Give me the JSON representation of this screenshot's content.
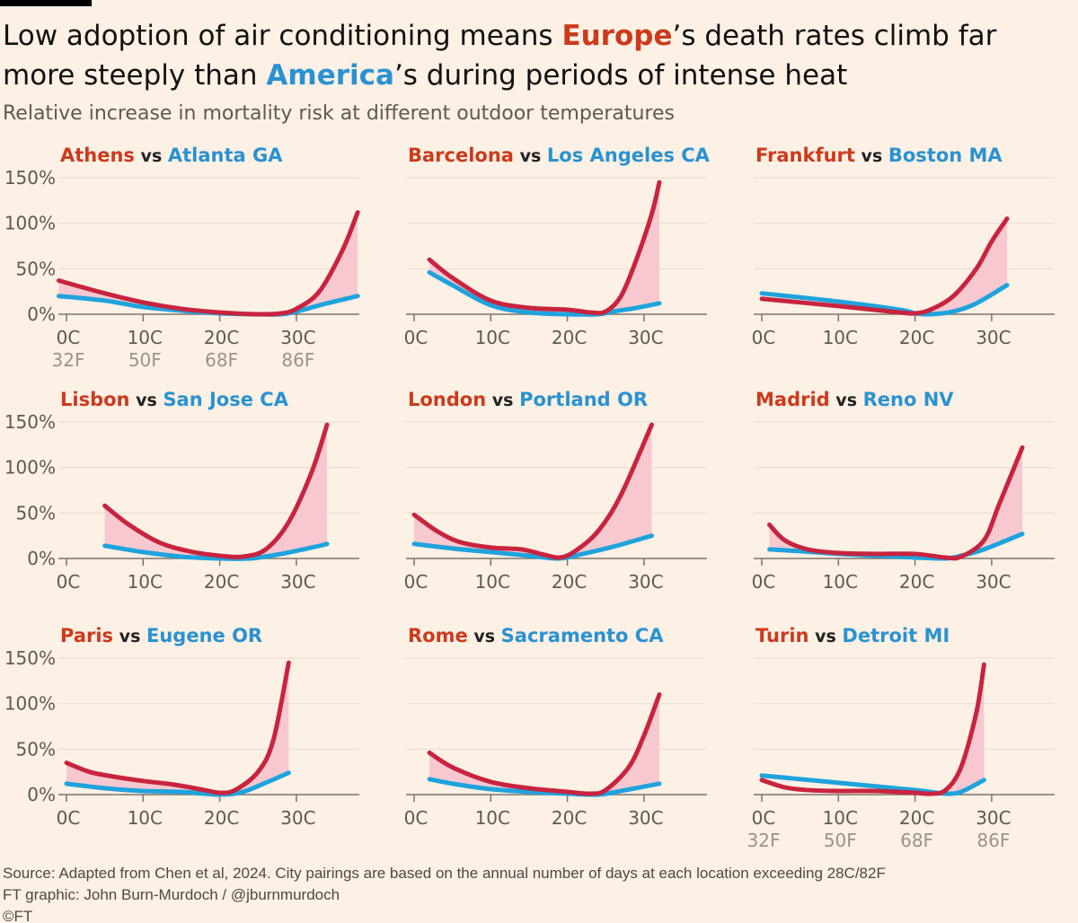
{
  "title": {
    "pre": "Low adoption of air conditioning means ",
    "europe": "Europe",
    "mid": "’s death rates climb far more steeply than ",
    "america": "America",
    "post": "’s during periods of intense heat"
  },
  "subtitle": "Relative increase in mortality risk at different outdoor temperatures",
  "footer": {
    "source": "Source: Adapted from Chen et al, 2024. City pairings are based on the annual number of days at each location exceeding 28C/82F",
    "credit": "FT graphic: John Burn-Murdoch / @jburnmurdoch",
    "copyright": "©FT"
  },
  "colors": {
    "europe_title": "#cc3a1d",
    "america_title": "#2a92d1",
    "europe_line": "#c8243f",
    "america_line": "#1ea3dd",
    "gap_fill": "#f8c8d0",
    "grid": "#e6dcd2",
    "axis": "#7c746d"
  },
  "chart_data": {
    "type": "line",
    "xlabel": "",
    "ylabel": "",
    "x_ticks": [
      "0C",
      "10C",
      "20C",
      "30C"
    ],
    "x_tick_values": [
      0,
      10,
      20,
      30
    ],
    "x_ticks_f": [
      "32F",
      "50F",
      "68F",
      "86F"
    ],
    "y_ticks": [
      "0%",
      "50%",
      "100%",
      "150%"
    ],
    "y_tick_values": [
      0,
      50,
      100,
      150
    ],
    "ylim": [
      0,
      150
    ],
    "xlim": [
      -1,
      38
    ],
    "grid": true,
    "joiner": "vs",
    "panels": [
      {
        "europe": "Athens",
        "america": "Atlanta GA",
        "show_y": true,
        "show_f": true,
        "europe_series": [
          [
            -1,
            37
          ],
          [
            5,
            23
          ],
          [
            10,
            13
          ],
          [
            15,
            6
          ],
          [
            20,
            2
          ],
          [
            25,
            0
          ],
          [
            28,
            1
          ],
          [
            30,
            6
          ],
          [
            33,
            25
          ],
          [
            36,
            70
          ],
          [
            38,
            112
          ]
        ],
        "america_series": [
          [
            -1,
            20
          ],
          [
            5,
            15
          ],
          [
            10,
            8
          ],
          [
            15,
            4
          ],
          [
            20,
            1
          ],
          [
            25,
            0
          ],
          [
            28,
            0
          ],
          [
            30,
            3
          ],
          [
            34,
            12
          ],
          [
            38,
            20
          ]
        ]
      },
      {
        "europe": "Barcelona",
        "america": "Los Angeles CA",
        "show_y": false,
        "show_f": false,
        "europe_series": [
          [
            2,
            60
          ],
          [
            5,
            40
          ],
          [
            10,
            15
          ],
          [
            15,
            7
          ],
          [
            20,
            5
          ],
          [
            23,
            2
          ],
          [
            25,
            3
          ],
          [
            27,
            20
          ],
          [
            29,
            60
          ],
          [
            31,
            110
          ],
          [
            32,
            145
          ]
        ],
        "america_series": [
          [
            2,
            46
          ],
          [
            5,
            32
          ],
          [
            10,
            10
          ],
          [
            15,
            2
          ],
          [
            20,
            0
          ],
          [
            24,
            0
          ],
          [
            26,
            3
          ],
          [
            29,
            7
          ],
          [
            32,
            12
          ]
        ]
      },
      {
        "europe": "Frankfurt",
        "america": "Boston MA",
        "show_y": false,
        "show_f": false,
        "europe_series": [
          [
            0,
            17
          ],
          [
            10,
            9
          ],
          [
            18,
            2
          ],
          [
            20,
            1
          ],
          [
            22,
            5
          ],
          [
            25,
            20
          ],
          [
            28,
            50
          ],
          [
            30,
            80
          ],
          [
            32,
            105
          ]
        ],
        "america_series": [
          [
            0,
            23
          ],
          [
            10,
            14
          ],
          [
            18,
            5
          ],
          [
            20,
            1
          ],
          [
            22,
            0
          ],
          [
            25,
            3
          ],
          [
            28,
            12
          ],
          [
            32,
            32
          ]
        ]
      },
      {
        "europe": "Lisbon",
        "america": "San Jose CA",
        "show_y": true,
        "show_f": false,
        "europe_series": [
          [
            5,
            58
          ],
          [
            8,
            38
          ],
          [
            12,
            18
          ],
          [
            16,
            8
          ],
          [
            20,
            3
          ],
          [
            23,
            2
          ],
          [
            26,
            10
          ],
          [
            29,
            40
          ],
          [
            32,
            95
          ],
          [
            34,
            147
          ]
        ],
        "america_series": [
          [
            5,
            14
          ],
          [
            10,
            7
          ],
          [
            15,
            2
          ],
          [
            20,
            0
          ],
          [
            24,
            0
          ],
          [
            28,
            5
          ],
          [
            32,
            12
          ],
          [
            34,
            16
          ]
        ]
      },
      {
        "europe": "London",
        "america": "Portland OR",
        "show_y": false,
        "show_f": false,
        "europe_series": [
          [
            0,
            48
          ],
          [
            3,
            30
          ],
          [
            6,
            18
          ],
          [
            10,
            12
          ],
          [
            14,
            10
          ],
          [
            17,
            4
          ],
          [
            19,
            1
          ],
          [
            21,
            8
          ],
          [
            24,
            30
          ],
          [
            27,
            70
          ],
          [
            31,
            147
          ]
        ],
        "america_series": [
          [
            0,
            16
          ],
          [
            5,
            11
          ],
          [
            10,
            7
          ],
          [
            15,
            3
          ],
          [
            19,
            0
          ],
          [
            22,
            5
          ],
          [
            26,
            13
          ],
          [
            31,
            25
          ]
        ]
      },
      {
        "europe": "Madrid",
        "america": "Reno NV",
        "show_y": false,
        "show_f": false,
        "europe_series": [
          [
            1,
            37
          ],
          [
            3,
            20
          ],
          [
            6,
            10
          ],
          [
            10,
            6
          ],
          [
            15,
            5
          ],
          [
            20,
            5
          ],
          [
            24,
            1
          ],
          [
            26,
            2
          ],
          [
            29,
            20
          ],
          [
            31,
            60
          ],
          [
            34,
            122
          ]
        ],
        "america_series": [
          [
            1,
            10
          ],
          [
            5,
            8
          ],
          [
            10,
            5
          ],
          [
            15,
            3
          ],
          [
            20,
            1
          ],
          [
            24,
            0
          ],
          [
            26,
            3
          ],
          [
            29,
            10
          ],
          [
            34,
            27
          ]
        ]
      },
      {
        "europe": "Paris",
        "america": "Eugene OR",
        "show_y": true,
        "show_f": false,
        "europe_series": [
          [
            0,
            35
          ],
          [
            3,
            25
          ],
          [
            6,
            20
          ],
          [
            10,
            15
          ],
          [
            14,
            11
          ],
          [
            18,
            5
          ],
          [
            20,
            2
          ],
          [
            22,
            5
          ],
          [
            25,
            25
          ],
          [
            27,
            60
          ],
          [
            29,
            145
          ]
        ],
        "america_series": [
          [
            0,
            12
          ],
          [
            5,
            7
          ],
          [
            10,
            4
          ],
          [
            15,
            3
          ],
          [
            20,
            0
          ],
          [
            23,
            3
          ],
          [
            26,
            13
          ],
          [
            29,
            24
          ]
        ]
      },
      {
        "europe": "Rome",
        "america": "Sacramento CA",
        "show_y": false,
        "show_f": false,
        "europe_series": [
          [
            2,
            46
          ],
          [
            5,
            30
          ],
          [
            10,
            14
          ],
          [
            15,
            7
          ],
          [
            20,
            3
          ],
          [
            23,
            1
          ],
          [
            25,
            5
          ],
          [
            28,
            30
          ],
          [
            30,
            65
          ],
          [
            32,
            110
          ]
        ],
        "america_series": [
          [
            2,
            17
          ],
          [
            5,
            12
          ],
          [
            10,
            6
          ],
          [
            15,
            3
          ],
          [
            20,
            1
          ],
          [
            24,
            0
          ],
          [
            27,
            4
          ],
          [
            32,
            12
          ]
        ]
      },
      {
        "europe": "Turin",
        "america": "Detroit MI",
        "show_y": false,
        "show_f": true,
        "europe_series": [
          [
            0,
            16
          ],
          [
            3,
            8
          ],
          [
            6,
            5
          ],
          [
            10,
            4
          ],
          [
            15,
            4
          ],
          [
            20,
            2
          ],
          [
            22,
            1
          ],
          [
            24,
            5
          ],
          [
            26,
            30
          ],
          [
            28,
            90
          ],
          [
            29,
            143
          ]
        ],
        "america_series": [
          [
            0,
            21
          ],
          [
            5,
            17
          ],
          [
            10,
            13
          ],
          [
            15,
            9
          ],
          [
            20,
            5
          ],
          [
            22,
            3
          ],
          [
            24,
            1
          ],
          [
            26,
            3
          ],
          [
            29,
            16
          ]
        ]
      }
    ]
  }
}
